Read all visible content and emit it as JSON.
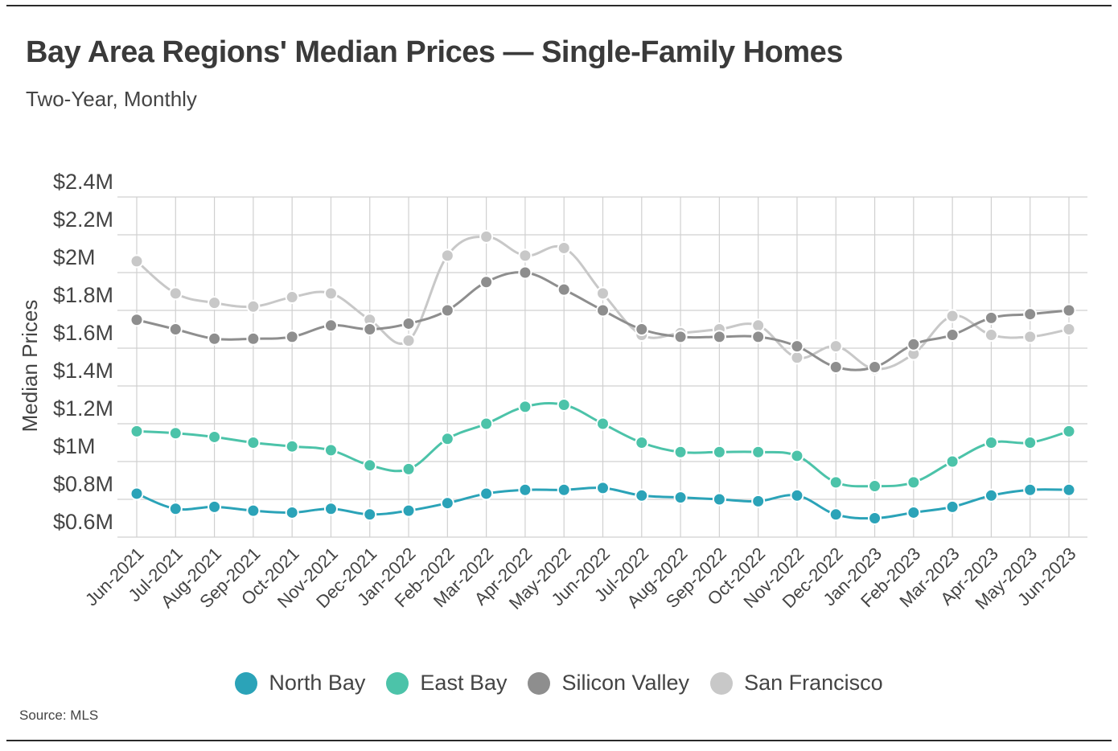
{
  "header": {
    "title": "Bay Area Regions' Median Prices — Single-Family Homes",
    "subtitle": "Two-Year, Monthly"
  },
  "footer": {
    "source": "Source: MLS"
  },
  "chart_data": {
    "type": "line",
    "title": "Bay Area Regions' Median Prices — Single-Family Homes",
    "subtitle": "Two-Year, Monthly",
    "xlabel": "",
    "ylabel": "Median Prices",
    "ylim": [
      0.6,
      2.4
    ],
    "yticks": [
      0.6,
      0.8,
      1.0,
      1.2,
      1.4,
      1.6,
      1.8,
      2.0,
      2.2,
      2.4
    ],
    "ytick_labels": [
      "$0.6M",
      "$0.8M",
      "$1M",
      "$1.2M",
      "$1.4M",
      "$1.6M",
      "$1.8M",
      "$2M",
      "$2.2M",
      "$2.4M"
    ],
    "grid": true,
    "legend_position": "bottom",
    "categories": [
      "Jun-2021",
      "Jul-2021",
      "Aug-2021",
      "Sep-2021",
      "Oct-2021",
      "Nov-2021",
      "Dec-2021",
      "Jan-2022",
      "Feb-2022",
      "Mar-2022",
      "Apr-2022",
      "May-2022",
      "Jun-2022",
      "Jul-2022",
      "Aug-2022",
      "Sep-2022",
      "Oct-2022",
      "Nov-2022",
      "Dec-2022",
      "Jan-2023",
      "Feb-2023",
      "Mar-2023",
      "Apr-2023",
      "May-2023",
      "Jun-2023"
    ],
    "series": [
      {
        "name": "San Francisco",
        "color": "#c8c8c8",
        "values": [
          2.06,
          1.89,
          1.84,
          1.82,
          1.87,
          1.89,
          1.75,
          1.64,
          2.09,
          2.19,
          2.09,
          2.13,
          1.89,
          1.67,
          1.68,
          1.7,
          1.72,
          1.55,
          1.61,
          1.49,
          1.57,
          1.77,
          1.67,
          1.66,
          1.7
        ]
      },
      {
        "name": "Silicon Valley",
        "color": "#8e8e8e",
        "values": [
          1.75,
          1.7,
          1.65,
          1.65,
          1.66,
          1.72,
          1.7,
          1.73,
          1.8,
          1.95,
          2.0,
          1.91,
          1.8,
          1.7,
          1.66,
          1.66,
          1.66,
          1.61,
          1.5,
          1.5,
          1.62,
          1.67,
          1.76,
          1.78,
          1.8
        ]
      },
      {
        "name": "East Bay",
        "color": "#4cc3a9",
        "values": [
          1.16,
          1.15,
          1.13,
          1.1,
          1.08,
          1.06,
          0.98,
          0.96,
          1.12,
          1.2,
          1.29,
          1.3,
          1.2,
          1.1,
          1.05,
          1.05,
          1.05,
          1.03,
          0.89,
          0.87,
          0.89,
          1.0,
          1.1,
          1.1,
          1.16
        ]
      },
      {
        "name": "North Bay",
        "color": "#2ba3b8",
        "values": [
          0.83,
          0.75,
          0.76,
          0.74,
          0.73,
          0.75,
          0.72,
          0.74,
          0.78,
          0.83,
          0.85,
          0.85,
          0.86,
          0.82,
          0.81,
          0.8,
          0.79,
          0.82,
          0.72,
          0.7,
          0.73,
          0.76,
          0.82,
          0.85,
          0.85
        ]
      }
    ],
    "legend_order": [
      "North Bay",
      "East Bay",
      "Silicon Valley",
      "San Francisco"
    ]
  }
}
